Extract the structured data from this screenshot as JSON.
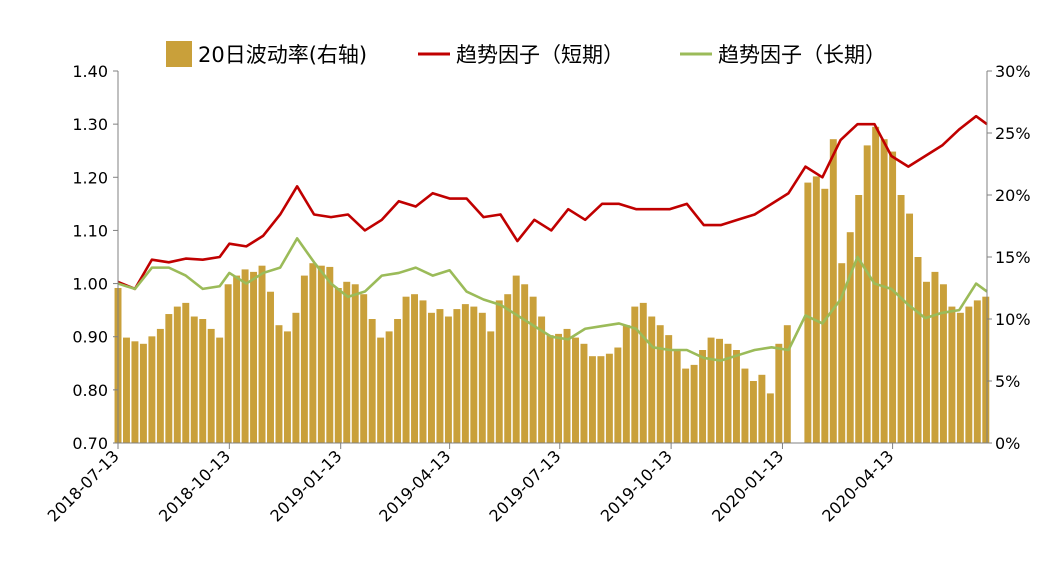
{
  "chart_data": {
    "type": "bar+line",
    "colors": {
      "bar": "#C9A03A",
      "short": "#C00000",
      "long": "#9BBB59"
    },
    "legend": {
      "placement": "top-center",
      "items": [
        "20日波动率(右轴)",
        "趋势因子（短期）",
        "趋势因子（长期）"
      ]
    },
    "left_axis": {
      "ylim": [
        0.7,
        1.4
      ],
      "ticks": [
        "0.70",
        "0.80",
        "0.90",
        "1.00",
        "1.10",
        "1.20",
        "1.30",
        "1.40"
      ]
    },
    "right_axis": {
      "ylim": [
        0,
        30
      ],
      "ticks": [
        "0%",
        "5%",
        "10%",
        "15%",
        "20%",
        "25%",
        "30%"
      ]
    },
    "x_axis": {
      "start": "2018-07-13",
      "end": "2020-06-30",
      "tick_labels": [
        "2018-07-13",
        "2018-10-13",
        "2019-01-13",
        "2019-04-13",
        "2019-07-13",
        "2019-10-13",
        "2020-01-13",
        "2020-04-13"
      ]
    },
    "series": [
      {
        "name": "20日波动率(右轴)",
        "axis": "right",
        "kind": "bar",
        "points": [
          [
            "2018-07-13",
            12.5
          ],
          [
            "2018-07-20",
            8.5
          ],
          [
            "2018-07-27",
            8.2
          ],
          [
            "2018-08-03",
            8.0
          ],
          [
            "2018-08-10",
            8.6
          ],
          [
            "2018-08-17",
            9.2
          ],
          [
            "2018-08-24",
            10.4
          ],
          [
            "2018-08-31",
            11.0
          ],
          [
            "2018-09-07",
            11.3
          ],
          [
            "2018-09-14",
            10.2
          ],
          [
            "2018-09-21",
            10.0
          ],
          [
            "2018-09-28",
            9.2
          ],
          [
            "2018-10-05",
            8.5
          ],
          [
            "2018-10-12",
            12.8
          ],
          [
            "2018-10-19",
            13.5
          ],
          [
            "2018-10-26",
            14.0
          ],
          [
            "2018-11-02",
            13.8
          ],
          [
            "2018-11-09",
            14.3
          ],
          [
            "2018-11-16",
            12.2
          ],
          [
            "2018-11-23",
            9.5
          ],
          [
            "2018-11-30",
            9.0
          ],
          [
            "2018-12-07",
            10.5
          ],
          [
            "2018-12-14",
            13.5
          ],
          [
            "2018-12-21",
            14.5
          ],
          [
            "2018-12-28",
            14.3
          ],
          [
            "2019-01-04",
            14.2
          ],
          [
            "2019-01-11",
            12.5
          ],
          [
            "2019-01-18",
            13.0
          ],
          [
            "2019-01-25",
            12.8
          ],
          [
            "2019-02-01",
            12.0
          ],
          [
            "2019-02-08",
            10.0
          ],
          [
            "2019-02-15",
            8.5
          ],
          [
            "2019-02-22",
            9.0
          ],
          [
            "2019-03-01",
            10.0
          ],
          [
            "2019-03-08",
            11.8
          ],
          [
            "2019-03-15",
            12.0
          ],
          [
            "2019-03-22",
            11.5
          ],
          [
            "2019-03-29",
            10.5
          ],
          [
            "2019-04-05",
            10.8
          ],
          [
            "2019-04-12",
            10.2
          ],
          [
            "2019-04-19",
            10.8
          ],
          [
            "2019-04-26",
            11.2
          ],
          [
            "2019-05-03",
            11.0
          ],
          [
            "2019-05-10",
            10.5
          ],
          [
            "2019-05-17",
            9.0
          ],
          [
            "2019-05-24",
            11.5
          ],
          [
            "2019-05-31",
            12.0
          ],
          [
            "2019-06-07",
            13.5
          ],
          [
            "2019-06-14",
            12.8
          ],
          [
            "2019-06-21",
            11.8
          ],
          [
            "2019-06-28",
            10.2
          ],
          [
            "2019-07-05",
            8.7
          ],
          [
            "2019-07-12",
            8.8
          ],
          [
            "2019-07-19",
            9.2
          ],
          [
            "2019-07-26",
            8.5
          ],
          [
            "2019-08-02",
            8.0
          ],
          [
            "2019-08-09",
            7.0
          ],
          [
            "2019-08-16",
            7.0
          ],
          [
            "2019-08-23",
            7.2
          ],
          [
            "2019-08-30",
            7.7
          ],
          [
            "2019-09-06",
            9.5
          ],
          [
            "2019-09-13",
            11.0
          ],
          [
            "2019-09-20",
            11.3
          ],
          [
            "2019-09-27",
            10.2
          ],
          [
            "2019-10-04",
            9.5
          ],
          [
            "2019-10-11",
            8.7
          ],
          [
            "2019-10-18",
            7.5
          ],
          [
            "2019-10-25",
            6.0
          ],
          [
            "2019-11-01",
            6.3
          ],
          [
            "2019-11-08",
            7.5
          ],
          [
            "2019-11-15",
            8.5
          ],
          [
            "2019-11-22",
            8.4
          ],
          [
            "2019-11-29",
            8.0
          ],
          [
            "2019-12-06",
            7.5
          ],
          [
            "2019-12-13",
            6.0
          ],
          [
            "2019-12-20",
            5.0
          ],
          [
            "2019-12-27",
            5.5
          ],
          [
            "2020-01-03",
            4.0
          ],
          [
            "2020-01-10",
            8.0
          ],
          [
            "2020-01-17",
            9.5
          ],
          [
            "2020-02-03",
            21.0
          ],
          [
            "2020-02-10",
            21.5
          ],
          [
            "2020-02-17",
            20.5
          ],
          [
            "2020-02-24",
            24.5
          ],
          [
            "2020-03-02",
            14.5
          ],
          [
            "2020-03-09",
            17.0
          ],
          [
            "2020-03-16",
            20.0
          ],
          [
            "2020-03-23",
            24.0
          ],
          [
            "2020-03-30",
            25.5
          ],
          [
            "2020-04-06",
            24.5
          ],
          [
            "2020-04-13",
            23.5
          ],
          [
            "2020-04-20",
            20.0
          ],
          [
            "2020-04-27",
            18.5
          ],
          [
            "2020-05-04",
            15.0
          ],
          [
            "2020-05-11",
            13.0
          ],
          [
            "2020-05-18",
            13.8
          ],
          [
            "2020-05-25",
            12.8
          ],
          [
            "2020-06-01",
            11.0
          ],
          [
            "2020-06-08",
            10.5
          ],
          [
            "2020-06-15",
            11.0
          ],
          [
            "2020-06-22",
            11.5
          ],
          [
            "2020-06-29",
            11.8
          ]
        ]
      },
      {
        "name": "趋势因子（短期）",
        "axis": "left",
        "kind": "line",
        "points": [
          [
            "2018-07-13",
            1.003
          ],
          [
            "2018-07-27",
            0.99
          ],
          [
            "2018-08-10",
            1.045
          ],
          [
            "2018-08-24",
            1.04
          ],
          [
            "2018-09-07",
            1.047
          ],
          [
            "2018-09-21",
            1.045
          ],
          [
            "2018-10-05",
            1.05
          ],
          [
            "2018-10-13",
            1.075
          ],
          [
            "2018-10-27",
            1.07
          ],
          [
            "2018-11-10",
            1.09
          ],
          [
            "2018-11-24",
            1.13
          ],
          [
            "2018-12-08",
            1.183
          ],
          [
            "2018-12-22",
            1.13
          ],
          [
            "2019-01-05",
            1.125
          ],
          [
            "2019-01-19",
            1.13
          ],
          [
            "2019-02-02",
            1.1
          ],
          [
            "2019-02-16",
            1.12
          ],
          [
            "2019-03-02",
            1.155
          ],
          [
            "2019-03-16",
            1.145
          ],
          [
            "2019-03-30",
            1.17
          ],
          [
            "2019-04-13",
            1.16
          ],
          [
            "2019-04-27",
            1.16
          ],
          [
            "2019-05-11",
            1.125
          ],
          [
            "2019-05-25",
            1.13
          ],
          [
            "2019-06-08",
            1.08
          ],
          [
            "2019-06-22",
            1.12
          ],
          [
            "2019-07-06",
            1.1
          ],
          [
            "2019-07-20",
            1.14
          ],
          [
            "2019-08-03",
            1.12
          ],
          [
            "2019-08-17",
            1.15
          ],
          [
            "2019-08-31",
            1.15
          ],
          [
            "2019-09-14",
            1.14
          ],
          [
            "2019-09-28",
            1.14
          ],
          [
            "2019-10-12",
            1.14
          ],
          [
            "2019-10-26",
            1.15
          ],
          [
            "2019-11-09",
            1.11
          ],
          [
            "2019-11-23",
            1.11
          ],
          [
            "2019-12-07",
            1.12
          ],
          [
            "2019-12-21",
            1.13
          ],
          [
            "2020-01-04",
            1.15
          ],
          [
            "2020-01-18",
            1.17
          ],
          [
            "2020-02-01",
            1.22
          ],
          [
            "2020-02-15",
            1.2
          ],
          [
            "2020-03-01",
            1.27
          ],
          [
            "2020-03-15",
            1.3
          ],
          [
            "2020-03-29",
            1.3
          ],
          [
            "2020-04-12",
            1.24
          ],
          [
            "2020-04-26",
            1.22
          ],
          [
            "2020-05-10",
            1.24
          ],
          [
            "2020-05-24",
            1.26
          ],
          [
            "2020-06-07",
            1.29
          ],
          [
            "2020-06-21",
            1.315
          ],
          [
            "2020-06-30",
            1.3
          ]
        ]
      },
      {
        "name": "趋势因子（长期）",
        "axis": "left",
        "kind": "line",
        "points": [
          [
            "2018-07-13",
            1.0
          ],
          [
            "2018-07-27",
            0.99
          ],
          [
            "2018-08-10",
            1.03
          ],
          [
            "2018-08-24",
            1.03
          ],
          [
            "2018-09-07",
            1.015
          ],
          [
            "2018-09-21",
            0.99
          ],
          [
            "2018-10-05",
            0.995
          ],
          [
            "2018-10-13",
            1.02
          ],
          [
            "2018-10-27",
            1.0
          ],
          [
            "2018-11-10",
            1.02
          ],
          [
            "2018-11-24",
            1.03
          ],
          [
            "2018-12-08",
            1.085
          ],
          [
            "2018-12-22",
            1.04
          ],
          [
            "2019-01-05",
            1.0
          ],
          [
            "2019-01-19",
            0.975
          ],
          [
            "2019-02-02",
            0.985
          ],
          [
            "2019-02-16",
            1.015
          ],
          [
            "2019-03-02",
            1.02
          ],
          [
            "2019-03-16",
            1.03
          ],
          [
            "2019-03-30",
            1.015
          ],
          [
            "2019-04-13",
            1.025
          ],
          [
            "2019-04-27",
            0.985
          ],
          [
            "2019-05-11",
            0.97
          ],
          [
            "2019-05-25",
            0.96
          ],
          [
            "2019-06-08",
            0.94
          ],
          [
            "2019-06-22",
            0.92
          ],
          [
            "2019-07-06",
            0.9
          ],
          [
            "2019-07-20",
            0.895
          ],
          [
            "2019-08-03",
            0.915
          ],
          [
            "2019-08-17",
            0.92
          ],
          [
            "2019-08-31",
            0.925
          ],
          [
            "2019-09-14",
            0.915
          ],
          [
            "2019-09-28",
            0.88
          ],
          [
            "2019-10-12",
            0.875
          ],
          [
            "2019-10-26",
            0.875
          ],
          [
            "2019-11-09",
            0.86
          ],
          [
            "2019-11-23",
            0.855
          ],
          [
            "2019-12-07",
            0.865
          ],
          [
            "2019-12-21",
            0.875
          ],
          [
            "2020-01-04",
            0.88
          ],
          [
            "2020-01-18",
            0.875
          ],
          [
            "2020-02-01",
            0.94
          ],
          [
            "2020-02-15",
            0.925
          ],
          [
            "2020-03-01",
            0.97
          ],
          [
            "2020-03-15",
            1.05
          ],
          [
            "2020-03-29",
            1.0
          ],
          [
            "2020-04-12",
            0.99
          ],
          [
            "2020-04-26",
            0.96
          ],
          [
            "2020-05-10",
            0.935
          ],
          [
            "2020-05-24",
            0.945
          ],
          [
            "2020-06-07",
            0.95
          ],
          [
            "2020-06-21",
            1.0
          ],
          [
            "2020-06-30",
            0.985
          ]
        ]
      }
    ]
  }
}
